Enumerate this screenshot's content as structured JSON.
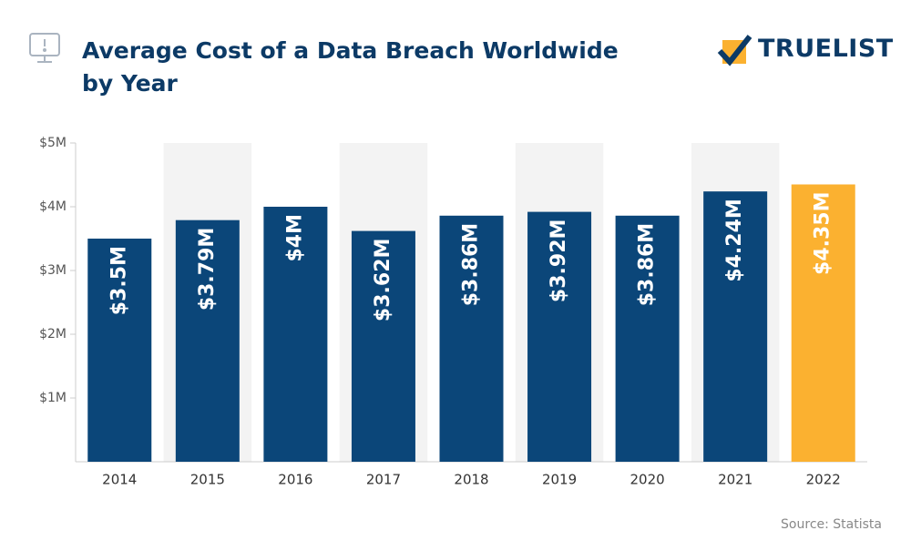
{
  "brand": "TRUELIST",
  "chart_data": {
    "type": "bar",
    "title": "Average Cost of a Data Breach Worldwide by Year",
    "source": "Source: Statista",
    "categories": [
      "2014",
      "2015",
      "2016",
      "2017",
      "2018",
      "2019",
      "2020",
      "2021",
      "2022"
    ],
    "values": [
      3500000,
      3790000,
      4000000,
      3620000,
      3860000,
      3920000,
      3860000,
      4240000,
      4350000
    ],
    "value_labels": [
      "$3.5M",
      "$3.79M",
      "$4M",
      "$3.62M",
      "$3.86M",
      "$3.92M",
      "$3.86M",
      "$4.24M",
      "$4.35M"
    ],
    "colors": [
      "#0b4679",
      "#0b4679",
      "#0b4679",
      "#0b4679",
      "#0b4679",
      "#0b4679",
      "#0b4679",
      "#0b4679",
      "#fbb130"
    ],
    "ylim": [
      0,
      5000000
    ],
    "yticks": [
      {
        "value": 1000000,
        "label": "$1M"
      },
      {
        "value": 2000000,
        "label": "$2M"
      },
      {
        "value": 3000000,
        "label": "$3M"
      },
      {
        "value": 4000000,
        "label": "$4M"
      },
      {
        "value": 5000000,
        "label": "$5M"
      }
    ],
    "grid": false
  }
}
